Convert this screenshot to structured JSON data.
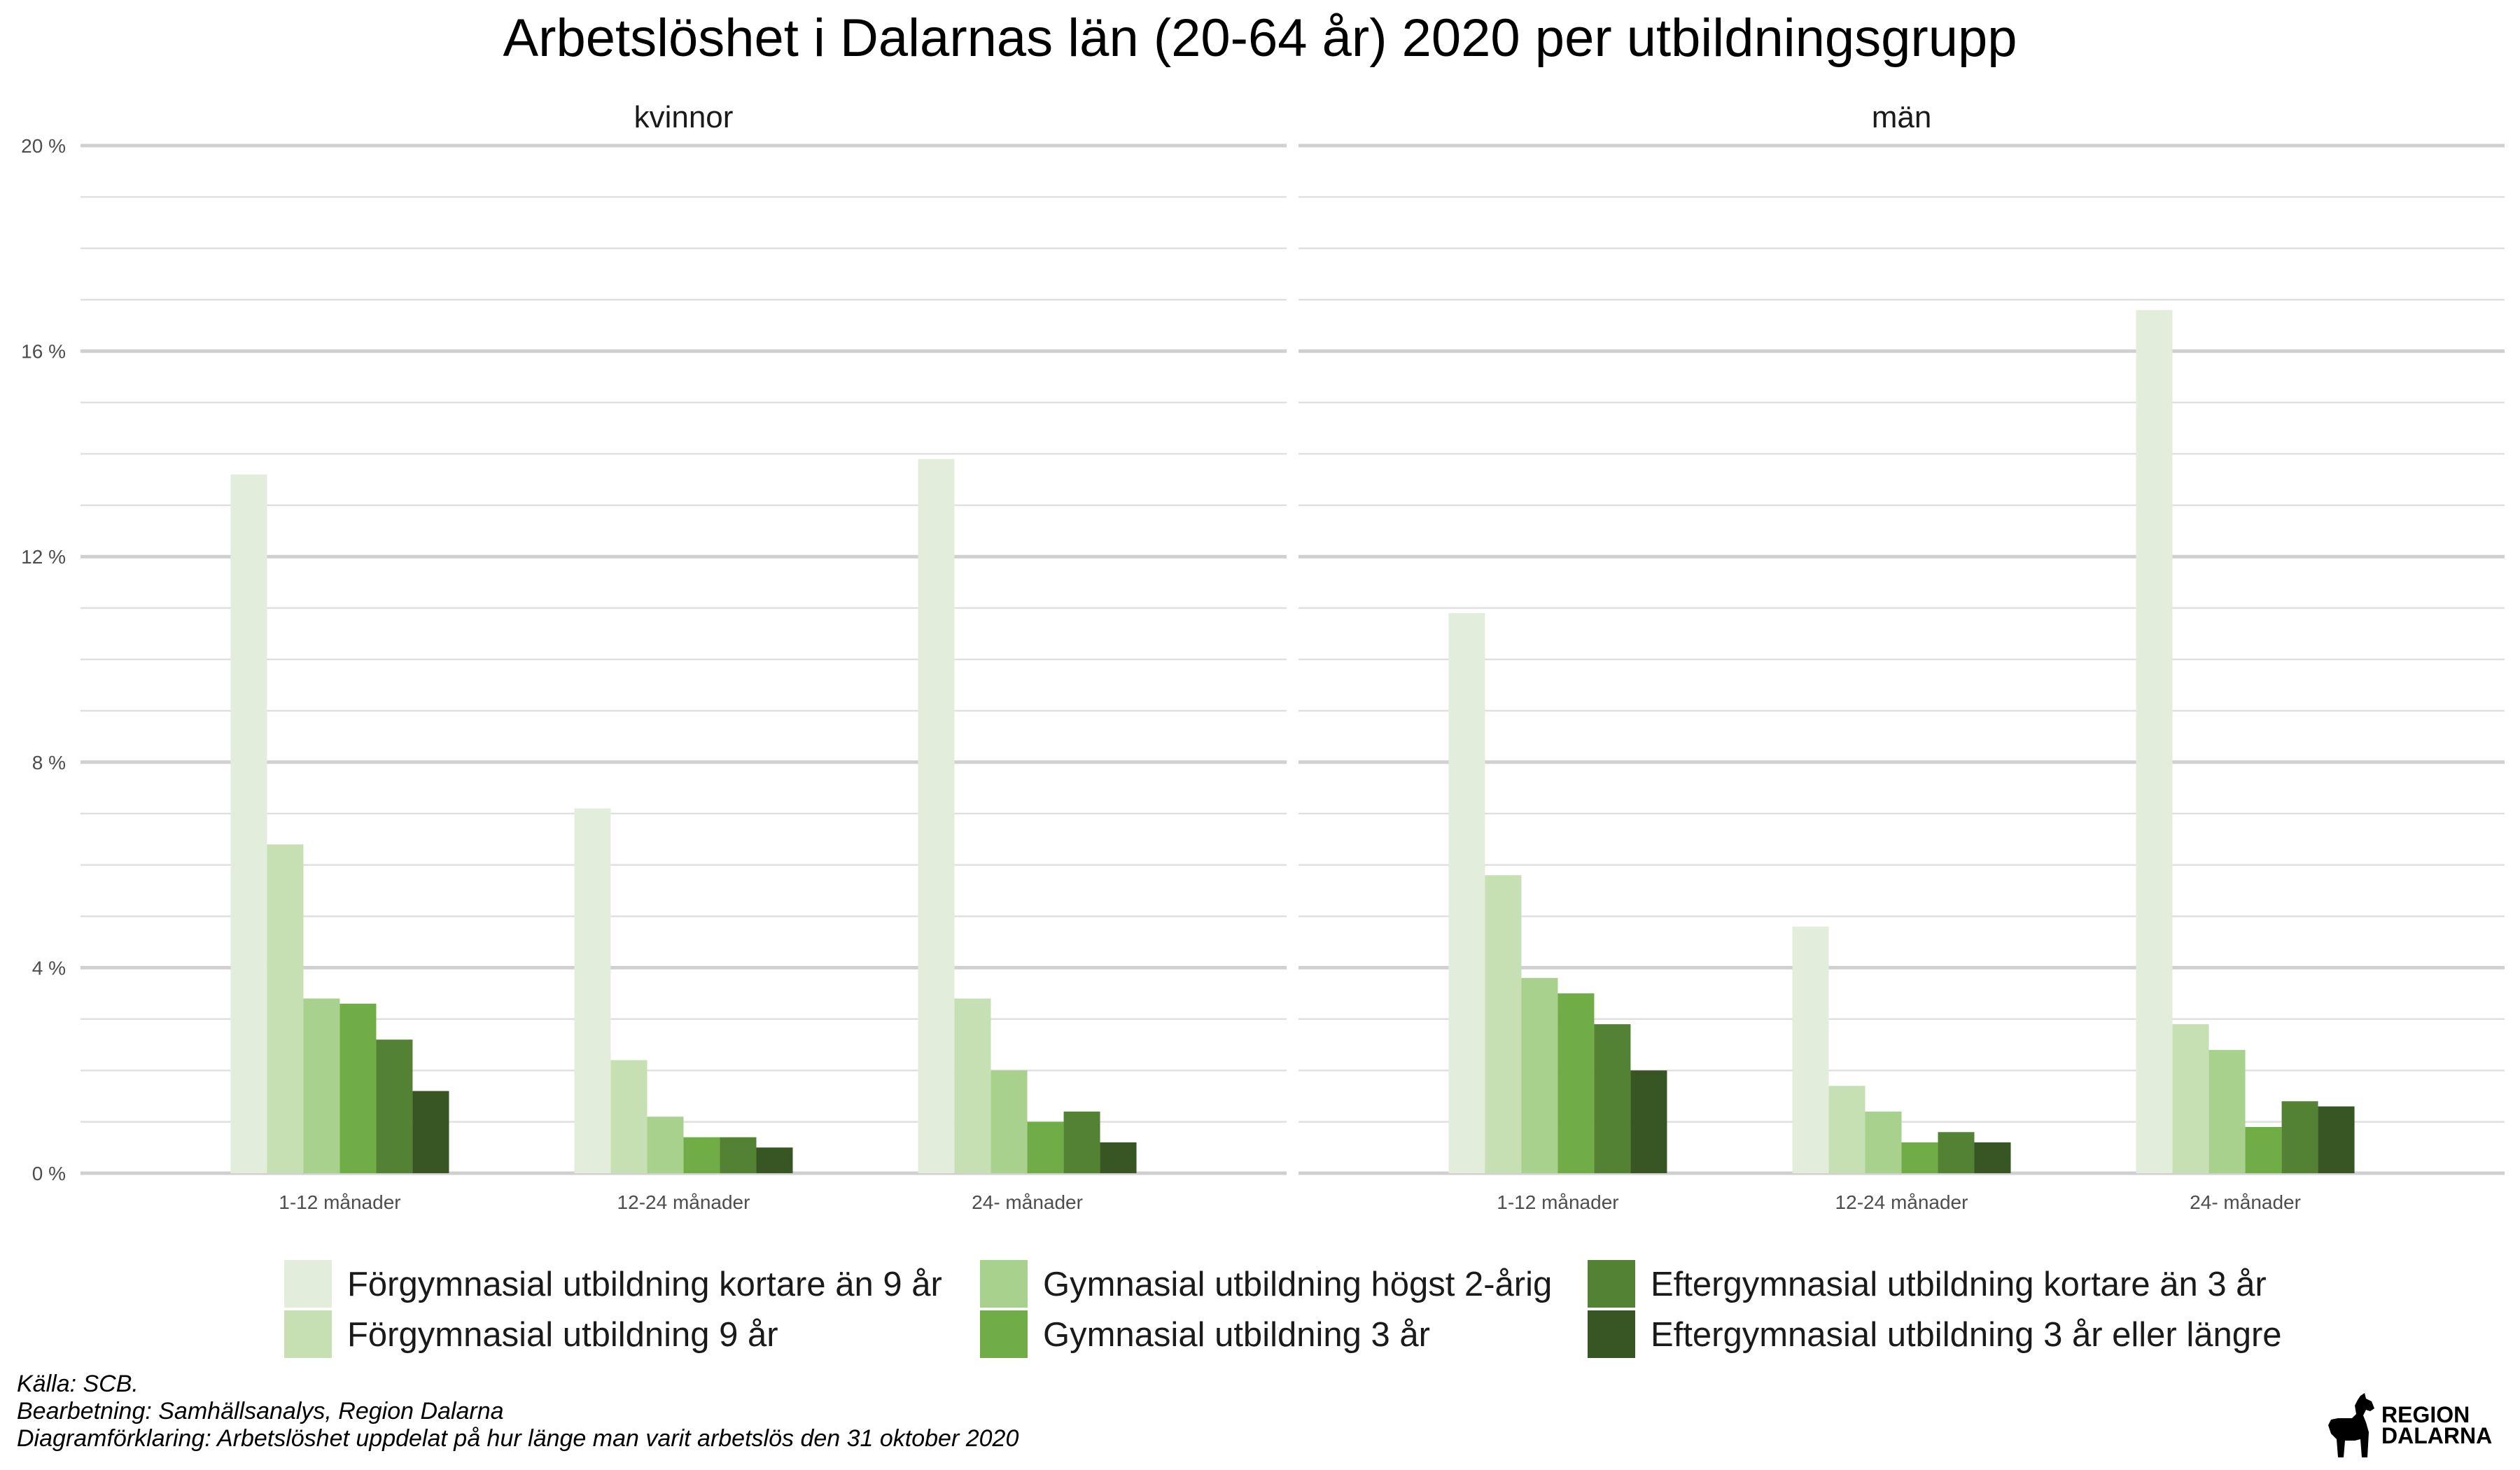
{
  "chart_data": {
    "type": "bar",
    "title": "Arbetslöshet i Dalarnas län (20-64 år) 2020 per utbildningsgrupp",
    "y_tick_labels": [
      "0 %",
      "4 %",
      "8 %",
      "12 %",
      "16 %",
      "20 %"
    ],
    "ylim": [
      0,
      20
    ],
    "grid": true,
    "legend_position": "bottom",
    "categories": [
      "1-12 månader",
      "12-24 månader",
      "24- månader"
    ],
    "series_names": [
      "Förgymnasial utbildning kortare än 9 år",
      "Förgymnasial utbildning 9 år",
      "Gymnasial utbildning högst 2-årig",
      "Gymnasial utbildning 3 år",
      "Eftergymnasial utbildning kortare än 3 år",
      "Eftergymnasial utbildning 3 år eller längre"
    ],
    "colors": [
      "#e2eedb",
      "#c6e0b4",
      "#a9d18e",
      "#70ad47",
      "#548235",
      "#375623"
    ],
    "panels": [
      {
        "name": "kvinnor",
        "series": [
          {
            "name": "Förgymnasial utbildning kortare än 9 år",
            "values": [
              13.6,
              7.1,
              13.9
            ]
          },
          {
            "name": "Förgymnasial utbildning 9 år",
            "values": [
              6.4,
              2.2,
              3.4
            ]
          },
          {
            "name": "Gymnasial utbildning högst 2-årig",
            "values": [
              3.4,
              1.1,
              2.0
            ]
          },
          {
            "name": "Gymnasial utbildning 3 år",
            "values": [
              3.3,
              0.7,
              1.0
            ]
          },
          {
            "name": "Eftergymnasial utbildning kortare än 3 år",
            "values": [
              2.6,
              0.7,
              1.2
            ]
          },
          {
            "name": "Eftergymnasial utbildning 3 år eller längre",
            "values": [
              1.6,
              0.5,
              0.6
            ]
          }
        ]
      },
      {
        "name": "män",
        "series": [
          {
            "name": "Förgymnasial utbildning kortare än 9 år",
            "values": [
              10.9,
              4.8,
              16.8
            ]
          },
          {
            "name": "Förgymnasial utbildning 9 år",
            "values": [
              5.8,
              1.7,
              2.9
            ]
          },
          {
            "name": "Gymnasial utbildning högst 2-årig",
            "values": [
              3.8,
              1.2,
              2.4
            ]
          },
          {
            "name": "Gymnasial utbildning 3 år",
            "values": [
              3.5,
              0.6,
              0.9
            ]
          },
          {
            "name": "Eftergymnasial utbildning kortare än 3 år",
            "values": [
              2.9,
              0.8,
              1.4
            ]
          },
          {
            "name": "Eftergymnasial utbildning 3 år eller längre",
            "values": [
              2.0,
              0.6,
              1.3
            ]
          }
        ]
      }
    ]
  },
  "caption": {
    "source": "Källa: SCB.",
    "processing": "Bearbetning: Samhällsanalys, Region Dalarna",
    "explanation": "Diagramförklaring: Arbetslöshet uppdelat på hur länge man varit arbetslös den 31 oktober 2020"
  },
  "logo": {
    "line1": "REGION",
    "line2": "DALARNA",
    "icon": "dala-horse-icon"
  }
}
